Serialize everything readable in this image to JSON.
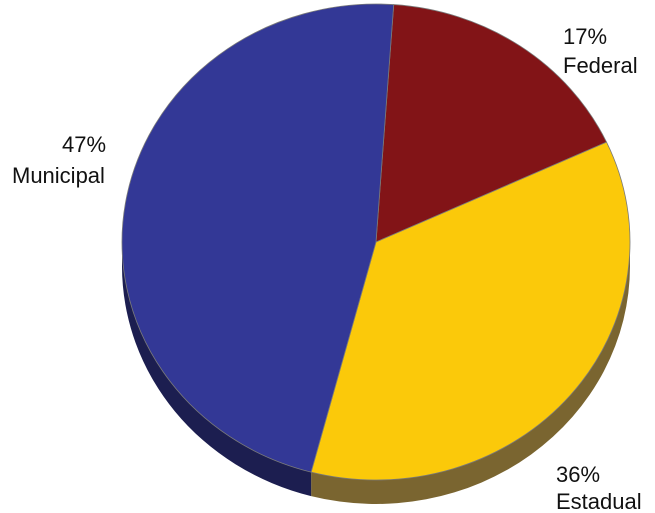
{
  "chart_data": {
    "type": "pie",
    "style": "3d-tilted",
    "title": "",
    "slices": [
      {
        "label": "Federal",
        "percent_label": "17%",
        "value": 17,
        "color": "#821417",
        "side_color": "#4a0a0c"
      },
      {
        "label": "Estadual",
        "percent_label": "36%",
        "value": 36,
        "color": "#fbc90a",
        "side_color": "#7a6530"
      },
      {
        "label": "Municipal",
        "percent_label": "47%",
        "value": 47,
        "color": "#333896",
        "side_color": "#1c1e50"
      }
    ],
    "legend": "none",
    "start_angle_deg": -86,
    "direction": "clockwise"
  }
}
